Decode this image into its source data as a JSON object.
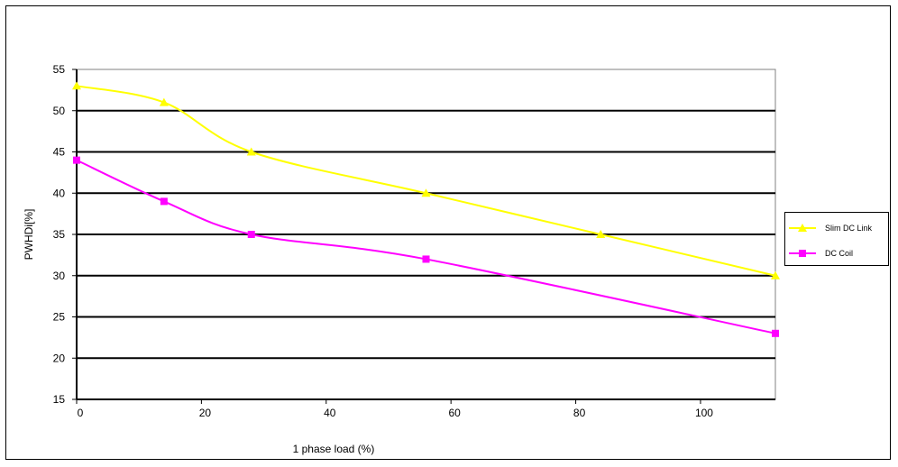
{
  "chart_data": {
    "type": "line",
    "title": "",
    "xlabel": "1 phase load (%)",
    "ylabel": "PWHDi[%]",
    "xlim": [
      0,
      112
    ],
    "ylim": [
      15,
      55
    ],
    "x_ticks": [
      0,
      20,
      40,
      60,
      80,
      100
    ],
    "y_ticks": [
      15,
      20,
      25,
      30,
      35,
      40,
      45,
      50,
      55
    ],
    "grid": "horizontal",
    "legend_position": "right",
    "series": [
      {
        "name": "Slim DC Link",
        "color": "#ffff00",
        "marker": "triangle",
        "x": [
          0,
          14,
          28,
          56,
          84,
          112
        ],
        "y": [
          53,
          51,
          45,
          40,
          35,
          30
        ]
      },
      {
        "name": "DC Coil",
        "color": "#ff00ff",
        "marker": "square",
        "x": [
          0,
          14,
          28,
          56,
          112
        ],
        "y": [
          44,
          39,
          35,
          32,
          23
        ]
      }
    ]
  }
}
